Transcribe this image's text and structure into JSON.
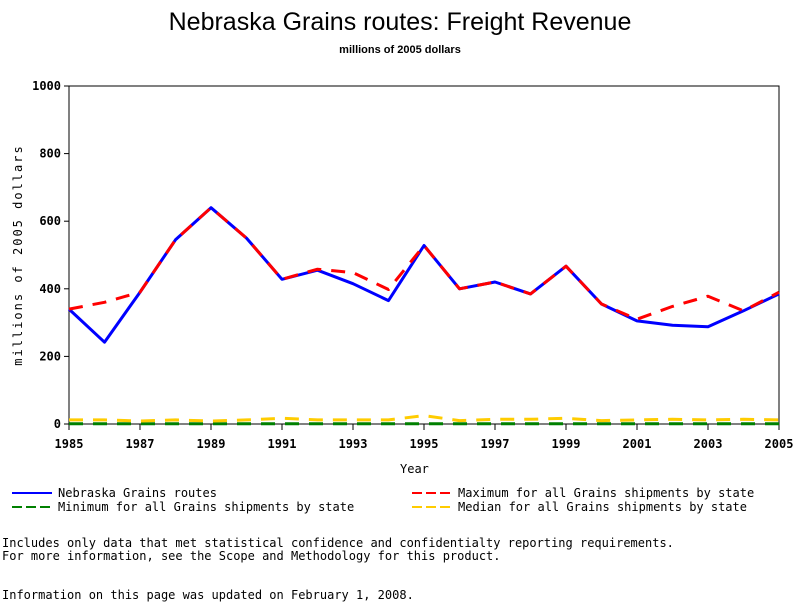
{
  "chart_data": {
    "type": "line",
    "title": "Nebraska Grains routes: Freight Revenue",
    "subtitle": "millions of 2005 dollars",
    "xlabel": "Year",
    "ylabel": "millions of 2005 dollars",
    "xlim": [
      1985,
      2005
    ],
    "ylim": [
      0,
      1000
    ],
    "x_ticks": [
      "1985",
      "1987",
      "1989",
      "1991",
      "1993",
      "1995",
      "1997",
      "1999",
      "2001",
      "2003",
      "2005"
    ],
    "y_ticks": [
      "0",
      "200",
      "400",
      "600",
      "800",
      "1000"
    ],
    "x": [
      1985,
      1986,
      1987,
      1988,
      1989,
      1990,
      1991,
      1992,
      1993,
      1994,
      1995,
      1996,
      1997,
      1998,
      1999,
      2000,
      2001,
      2002,
      2003,
      2004,
      2005
    ],
    "series": [
      {
        "name": "Nebraska Grains routes",
        "color": "#0000ff",
        "dash": "solid",
        "values": [
          340,
          242,
          390,
          545,
          640,
          550,
          428,
          455,
          415,
          365,
          528,
          400,
          420,
          385,
          467,
          355,
          305,
          292,
          288,
          335,
          385
        ]
      },
      {
        "name": "Maximum for all Grains shipments by state",
        "color": "#ff0000",
        "dash": "dashed",
        "values": [
          340,
          360,
          390,
          545,
          640,
          550,
          428,
          458,
          448,
          398,
          528,
          400,
          420,
          385,
          467,
          355,
          310,
          348,
          378,
          335,
          390
        ]
      },
      {
        "name": "Minimum for all Grains shipments by state",
        "color": "#008000",
        "dash": "dashed",
        "values": [
          1,
          1,
          1,
          1,
          1,
          1,
          1,
          1,
          1,
          1,
          1,
          1,
          1,
          1,
          1,
          1,
          1,
          1,
          1,
          1,
          1
        ]
      },
      {
        "name": "Median for all Grains shipments by state",
        "color": "#ffcc00",
        "dash": "dashed",
        "values": [
          12,
          12,
          9,
          12,
          9,
          12,
          17,
          12,
          12,
          12,
          25,
          10,
          14,
          14,
          17,
          10,
          12,
          14,
          12,
          14,
          12
        ]
      }
    ],
    "grid": false,
    "legend_position": "bottom"
  },
  "notes": {
    "line1": "Includes only data that met statistical confidence and confidentialty reporting requirements.",
    "line2": "For more information, see the Scope and Methodology for this product.",
    "updated": "Information on this page was updated on February 1, 2008."
  }
}
